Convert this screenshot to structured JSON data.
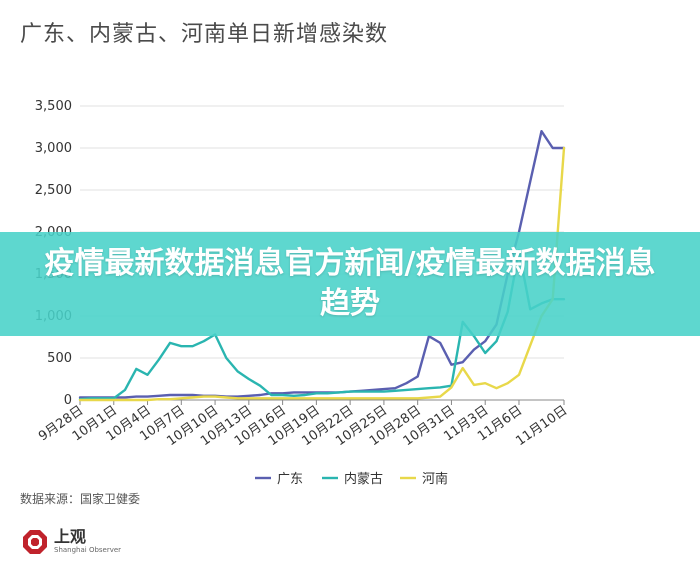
{
  "title": "广东、内蒙古、河南单日新增感染数",
  "banner": "疫情最新数据消息官方新闻/疫情最新数据消息趋势",
  "source": "数据来源：国家卫健委",
  "logo": {
    "name_cn": "上观",
    "name_en": "Shanghai Observer"
  },
  "chart_data": {
    "type": "line",
    "title": "广东、内蒙古、河南单日新增感染数",
    "ylim": [
      0,
      3500
    ],
    "yticks": [
      0,
      500,
      1000,
      1500,
      2000,
      2500,
      3000,
      3500
    ],
    "ytick_labels": [
      "0",
      "500",
      "1,000",
      "1,500",
      "2,000",
      "2,500",
      "3,000",
      "3,500"
    ],
    "grid": true,
    "legend_position": "bottom",
    "x_tick_labels": [
      "9月28日",
      "10月1日",
      "10月4日",
      "10月7日",
      "10月10日",
      "10月13日",
      "10月16日",
      "10月19日",
      "10月22日",
      "10月25日",
      "10月28日",
      "10月31日",
      "11月3日",
      "11月6日",
      "11月10日"
    ],
    "x": [
      "9月28日",
      "9月29日",
      "9月30日",
      "10月1日",
      "10月2日",
      "10月3日",
      "10月4日",
      "10月5日",
      "10月6日",
      "10月7日",
      "10月8日",
      "10月9日",
      "10月10日",
      "10月11日",
      "10月12日",
      "10月13日",
      "10月14日",
      "10月15日",
      "10月16日",
      "10月17日",
      "10月18日",
      "10月19日",
      "10月20日",
      "10月21日",
      "10月22日",
      "10月23日",
      "10月24日",
      "10月25日",
      "10月26日",
      "10月27日",
      "10月28日",
      "10月29日",
      "10月30日",
      "10月31日",
      "11月1日",
      "11月2日",
      "11月3日",
      "11月4日",
      "11月5日",
      "11月6日",
      "11月7日",
      "11月8日",
      "11月9日",
      "11月10日"
    ],
    "series": [
      {
        "name": "广东",
        "color": "#5a5fb0",
        "values": [
          30,
          30,
          30,
          30,
          30,
          40,
          40,
          50,
          60,
          60,
          60,
          50,
          50,
          40,
          40,
          50,
          60,
          80,
          80,
          90,
          90,
          90,
          90,
          90,
          100,
          110,
          120,
          130,
          140,
          200,
          280,
          760,
          680,
          420,
          450,
          600,
          700,
          900,
          1500,
          2000,
          2600,
          3200,
          3000,
          3000
        ]
      },
      {
        "name": "内蒙古",
        "color": "#2ab5b0",
        "values": [
          10,
          20,
          20,
          20,
          120,
          370,
          300,
          480,
          680,
          640,
          640,
          700,
          780,
          500,
          340,
          250,
          170,
          60,
          60,
          50,
          60,
          80,
          80,
          90,
          100,
          100,
          100,
          100,
          110,
          120,
          130,
          140,
          150,
          170,
          930,
          760,
          560,
          700,
          1050,
          1780,
          1080,
          1150,
          1200,
          1200
        ]
      },
      {
        "name": "河南",
        "color": "#e8d84a",
        "values": [
          0,
          0,
          0,
          0,
          0,
          0,
          0,
          10,
          10,
          20,
          30,
          40,
          40,
          30,
          20,
          20,
          20,
          20,
          20,
          20,
          20,
          20,
          20,
          20,
          20,
          20,
          20,
          20,
          20,
          20,
          20,
          30,
          40,
          150,
          380,
          180,
          200,
          140,
          200,
          300,
          650,
          1000,
          1200,
          3000
        ]
      }
    ]
  }
}
